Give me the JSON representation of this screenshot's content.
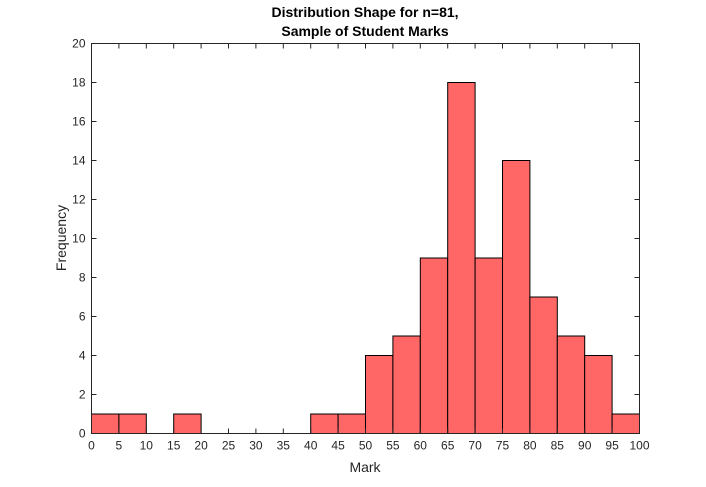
{
  "chart_data": {
    "type": "bar",
    "title_lines": [
      "Distribution Shape for n=81,",
      "Sample of Student Marks"
    ],
    "xlabel": "Mark",
    "ylabel": "Frequency",
    "bin_edges": [
      0,
      5,
      10,
      15,
      20,
      25,
      30,
      35,
      40,
      45,
      50,
      55,
      60,
      65,
      70,
      75,
      80,
      85,
      90,
      95,
      100
    ],
    "values": [
      1,
      1,
      0,
      1,
      0,
      0,
      0,
      0,
      1,
      1,
      4,
      5,
      9,
      18,
      9,
      14,
      7,
      5,
      4,
      1
    ],
    "xlim": [
      0,
      100
    ],
    "ylim": [
      0,
      20
    ],
    "xticks": [
      "0",
      "5",
      "10",
      "15",
      "20",
      "25",
      "30",
      "35",
      "40",
      "45",
      "50",
      "55",
      "60",
      "65",
      "70",
      "75",
      "80",
      "85",
      "90",
      "95",
      "100"
    ],
    "yticks": [
      "0",
      "2",
      "4",
      "6",
      "8",
      "10",
      "12",
      "14",
      "16",
      "18",
      "20"
    ],
    "bar_color": "#FF6666",
    "edge_color": "#000000",
    "grid": false
  }
}
